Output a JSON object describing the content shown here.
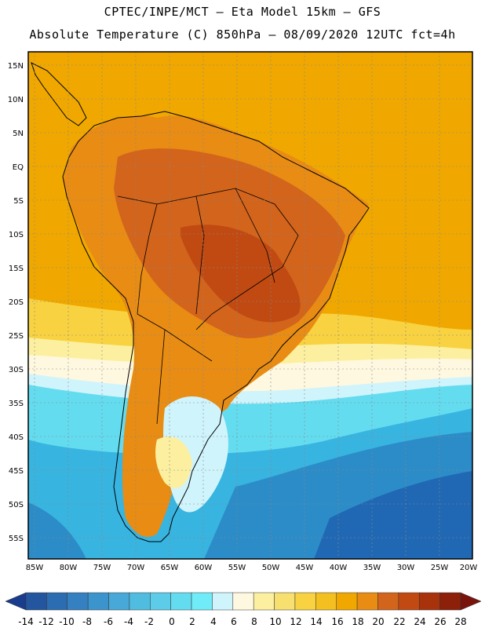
{
  "header": {
    "line1": "CPTEC/INPE/MCT –  Eta Model 15km – GFS",
    "line2": "Absolute Temperature (C) 850hPa – 08/09/2020 12UTC fct=4h"
  },
  "map": {
    "lat_labels": [
      "15N",
      "10N",
      "5N",
      "EQ",
      "5S",
      "10S",
      "15S",
      "20S",
      "25S",
      "30S",
      "35S",
      "40S",
      "45S",
      "50S",
      "55S"
    ],
    "lon_labels": [
      "85W",
      "80W",
      "75W",
      "70W",
      "65W",
      "60W",
      "55W",
      "50W",
      "45W",
      "40W",
      "35W",
      "30W",
      "25W",
      "20W"
    ],
    "colors": {
      "hot": "#f0a800",
      "warm": "#e88c14",
      "hotter": "#d2641c",
      "hottest": "#c04a12",
      "mild": "#f8d240",
      "pale": "#fcf0a0",
      "cream": "#fff8e0",
      "cold1": "#d0f4fc",
      "cold2": "#64dcf0",
      "cold3": "#38b4e0",
      "cold4": "#2c8cc8",
      "cold5": "#2068b4",
      "land_border": "#000000"
    }
  },
  "colorbar": {
    "labels": [
      "-14",
      "-12",
      "-10",
      "-8",
      "-6",
      "-4",
      "-2",
      "0",
      "2",
      "4",
      "6",
      "8",
      "10",
      "12",
      "14",
      "16",
      "18",
      "20",
      "22",
      "24",
      "26",
      "28"
    ],
    "colors": [
      "#1a3c8c",
      "#2456a0",
      "#2c6cb0",
      "#3480c0",
      "#3c94cc",
      "#48a8d8",
      "#50bce0",
      "#5ccce8",
      "#64dcf0",
      "#70ecf8",
      "#d0f4fc",
      "#fff8e0",
      "#fcf0a0",
      "#f8e070",
      "#f8d240",
      "#f4c020",
      "#f0a800",
      "#e88c14",
      "#d2641c",
      "#c04a12",
      "#a8320c",
      "#8c2008",
      "#78140c"
    ]
  }
}
